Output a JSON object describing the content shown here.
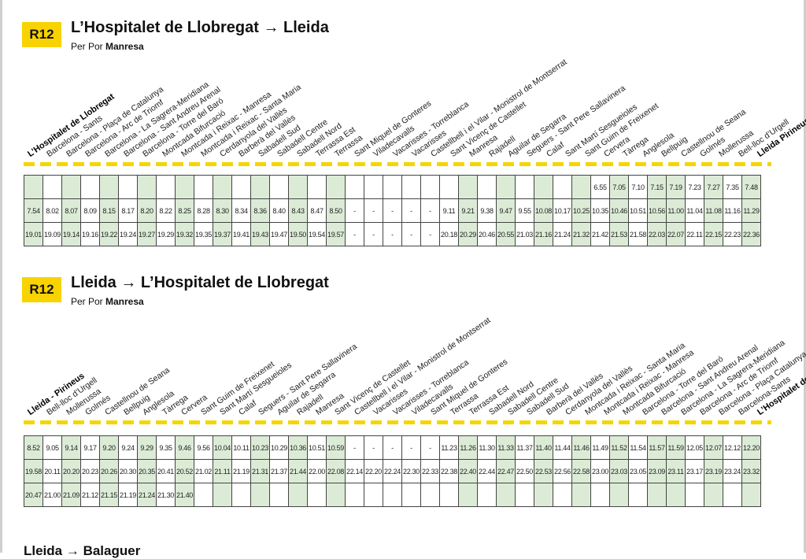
{
  "section1": {
    "badge": "R12",
    "title": "L’Hospitalet de Llobregat → Lleida",
    "subtitle_prefix": "Per Por ",
    "subtitle_via": "Manresa",
    "stations": [
      "L’Hospitalet de Llobregat",
      "Barcelona - Sants",
      "Barcelona - Plaça de Catalunya",
      "Barcelona - Arc de Triomf",
      "Barcelona - La Sagrera-Meridiana",
      "Barcelona - Sant Andreu Arenal",
      "Barcelona - Torre del Baró",
      "Montcada Bifurcació",
      "Montcada i Reixac - Manresa",
      "Montcada i Reixac - Santa Maria",
      "Cerdanyola del Vallès",
      "Barberà del Vallès",
      "Sabadell Sud",
      "Sabadell Centre",
      "Sabadell Nord",
      "Terrassa Est",
      "Terrassa",
      "Sant Miquel de Gonteres",
      "Viladecavalls",
      "Vacarisses - Torreblanca",
      "Vacarisses",
      "Castellbell i el Vilar - Monistrol de Montserrat",
      "Sant Vicenç de Castellet",
      "Manresa",
      "Rajadell",
      "Aguilar de Segarra",
      "Seguers - Sant Pere Sallavinera",
      "Calaf",
      "Sant Martí Sesgueioles",
      "Sant Guim de Freixenet",
      "Cervera",
      "Tàrrega",
      "Anglesola",
      "Bellpuig",
      "Castellnou de Seana",
      "Golmés",
      "Mollerussa",
      "Bell-lloc d’Urgell",
      "Lleida Pirineus"
    ],
    "rows": [
      [
        "",
        "",
        "",
        "",
        "",
        "",
        "",
        "",
        "",
        "",
        "",
        "",
        "",
        "",
        "",
        "",
        "",
        "",
        "",
        "",
        "",
        "",
        "",
        "",
        "",
        "",
        "",
        "",
        "",
        "",
        "6.55",
        "7.05",
        "7.10",
        "7.15",
        "7.19",
        "7.23",
        "7.27",
        "7.35",
        "7.48"
      ],
      [
        "7.54",
        "8.02",
        "8.07",
        "8.09",
        "8.15",
        "8.17",
        "8.20",
        "8.22",
        "8.25",
        "8.28",
        "8.30",
        "8.34",
        "8.36",
        "8.40",
        "8.43",
        "8.47",
        "8.50",
        "-",
        "-",
        "-",
        "-",
        "-",
        "9.11",
        "9.21",
        "9.38",
        "9.47",
        "9.55",
        "10.08",
        "10.17",
        "10.25",
        "10.35",
        "10.46",
        "10.51",
        "10.56",
        "11.00",
        "11.04",
        "11.08",
        "11.16",
        "11.29"
      ],
      [
        "19.01",
        "19.09",
        "19.14",
        "19.16",
        "19.22",
        "19.24",
        "19.27",
        "19.29",
        "19.32",
        "19.35",
        "19.37",
        "19.41",
        "19.43",
        "19.47",
        "19.50",
        "19.54",
        "19.57",
        "-",
        "-",
        "-",
        "-",
        "-",
        "20.18",
        "20.29",
        "20.46",
        "20.55",
        "21.03",
        "21.16",
        "21.24",
        "21.32",
        "21.42",
        "21.53",
        "21.58",
        "22.03",
        "22.07",
        "22.11",
        "22.15",
        "22.23",
        "22.36"
      ]
    ]
  },
  "section2": {
    "badge": "R12",
    "title": "Lleida → L’Hospitalet de Llobregat",
    "subtitle_prefix": "Per Por ",
    "subtitle_via": "Manresa",
    "stations": [
      "Lleida - Pirineus",
      "Bell-lloc d’Urgell",
      "Mollerussa",
      "Golmés",
      "Castellnou de Seana",
      "Bellpuig",
      "Anglesola",
      "Tàrrega",
      "Cervera",
      "Sant Guim de Freixenet",
      "Sant Martí Sesgueioles",
      "Calaf",
      "Seguers - Sant Pere Sallavinera",
      "Aguilar de Segarra",
      "Rajadell",
      "Manresa",
      "Sant Vicenç de Castellet",
      "Castellbell i el Vilar - Monistrol de Montserrat",
      "Vacarisses",
      "Vacarisses - Torreblanca",
      "Viladecavalls",
      "Sant Miquel de Gonteres",
      "Terrassa",
      "Terrassa Est",
      "Sabadell Nord",
      "Sabadell Centre",
      "Sabadell Sud",
      "Barberà del Vallès",
      "Cerdanyola del Vallès",
      "Montcada i Reixac - Santa Maria",
      "Montcada i Reixac - Manresa",
      "Montcada Bifurcació",
      "Barcelona - Torre del Baró",
      "Barcelona - Sant Andreu Arenal",
      "Barcelona - La Sagrera-Meridiana",
      "Barcelona - Arc de Triomf",
      "Barcelona - Plaça Catalunya",
      "Barcelona-Sants",
      "L’Hospitalet de Llobregat"
    ],
    "rows": [
      [
        "8.52",
        "9.05",
        "9.14",
        "9.17",
        "9.20",
        "9.24",
        "9.29",
        "9.35",
        "9.46",
        "9.56",
        "10.04",
        "10.11",
        "10.23",
        "10.29",
        "10.36",
        "10.51",
        "10.59",
        "-",
        "-",
        "-",
        "-",
        "-",
        "11.23",
        "11.26",
        "11.30",
        "11.33",
        "11.37",
        "11.40",
        "11.44",
        "11.46",
        "11.49",
        "11.52",
        "11.54",
        "11.57",
        "11.59",
        "12.05",
        "12.07",
        "12.12",
        "12.20"
      ],
      [
        "19.58",
        "20.11",
        "20.20",
        "20.23",
        "20.26",
        "20.30",
        "20.35",
        "20.41",
        "20.52",
        "21.02",
        "21.11",
        "21.19",
        "21.31",
        "21.37",
        "21.44",
        "22.00",
        "22.08",
        "22.14",
        "22.20",
        "22.24",
        "22.30",
        "22.33",
        "22.38",
        "22.40",
        "22.44",
        "22.47",
        "22.50",
        "22.53",
        "22.56",
        "22.58",
        "23.00",
        "23.03",
        "23.05",
        "23.09",
        "23.11",
        "23.17",
        "23.19",
        "23.24",
        "23.32"
      ],
      [
        "20.47",
        "21.00",
        "21.09",
        "21.12",
        "21.15",
        "21.19",
        "21.24",
        "21.30",
        "21.40",
        "",
        "",
        "",
        "",
        "",
        "",
        "",
        "",
        "",
        "",
        "",
        "",
        "",
        "",
        "",
        "",
        "",
        "",
        "",
        "",
        "",
        "",
        "",
        "",
        "",
        "",
        "",
        "",
        "",
        ""
      ]
    ]
  },
  "green_columns": [
    0,
    2,
    4,
    6,
    8,
    10,
    12,
    14,
    16,
    23,
    25,
    27,
    29,
    31,
    33,
    34,
    36,
    38
  ],
  "colors": {
    "badge": "#f9d300",
    "green_cell": "#dcebd6",
    "dash": "#f5d500"
  },
  "footer": {
    "partial_text": "Lleida → Balaguer"
  }
}
